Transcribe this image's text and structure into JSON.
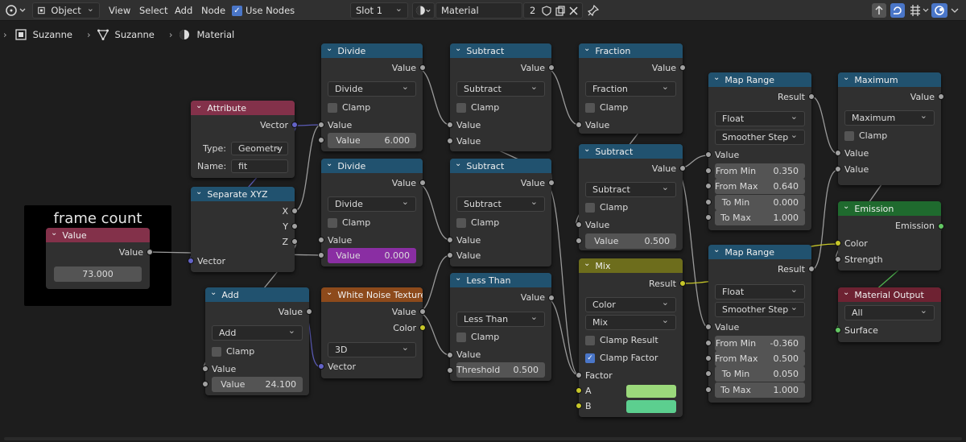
{
  "header": {
    "mode": "Object",
    "menus": [
      "View",
      "Select",
      "Add",
      "Node"
    ],
    "use_nodes": "Use Nodes",
    "slot": "Slot 1",
    "material": "Material",
    "users": "2"
  },
  "breadcrumb": [
    "Suzanne",
    "Suzanne",
    "Material"
  ],
  "frame": {
    "title": "frame count"
  },
  "nodes": {
    "value": {
      "title": "Value",
      "out": "Value",
      "value": "73.000"
    },
    "attribute": {
      "title": "Attribute",
      "out": "Vector",
      "type_label": "Type:",
      "type": "Geometry",
      "name_label": "Name:",
      "name": "fit"
    },
    "sepxyz": {
      "title": "Separate XYZ",
      "o1": "X",
      "o2": "Y",
      "o3": "Z",
      "in": "Vector"
    },
    "add": {
      "title": "Add",
      "out": "Value",
      "op": "Add",
      "clamp": "Clamp",
      "in": "Value",
      "vlabel": "Value",
      "v": "24.100"
    },
    "divide1": {
      "title": "Divide",
      "out": "Value",
      "op": "Divide",
      "clamp": "Clamp",
      "in": "Value",
      "vlabel": "Value",
      "v": "6.000"
    },
    "divide2": {
      "title": "Divide",
      "out": "Value",
      "op": "Divide",
      "clamp": "Clamp",
      "in": "Value",
      "vlabel": "Value",
      "v": "0.000"
    },
    "noise": {
      "title": "White Noise Texture",
      "o1": "Value",
      "o2": "Color",
      "dim": "3D",
      "in": "Vector"
    },
    "sub1": {
      "title": "Subtract",
      "out": "Value",
      "op": "Subtract",
      "clamp": "Clamp",
      "i1": "Value",
      "i2": "Value"
    },
    "sub2": {
      "title": "Subtract",
      "out": "Value",
      "op": "Subtract",
      "clamp": "Clamp",
      "i1": "Value",
      "i2": "Value"
    },
    "less": {
      "title": "Less Than",
      "out": "Value",
      "op": "Less Than",
      "clamp": "Clamp",
      "in": "Value",
      "tlabel": "Threshold",
      "t": "0.500"
    },
    "fraction": {
      "title": "Fraction",
      "out": "Value",
      "op": "Fraction",
      "clamp": "Clamp",
      "in": "Value"
    },
    "sub3": {
      "title": "Subtract",
      "out": "Value",
      "op": "Subtract",
      "clamp": "Clamp",
      "in": "Value",
      "vlabel": "Value",
      "v": "0.500"
    },
    "mix": {
      "title": "Mix",
      "out": "Result",
      "type": "Color",
      "blend": "Mix",
      "cr": "Clamp Result",
      "cf": "Clamp Factor",
      "fac": "Factor",
      "a": "A",
      "b": "B",
      "color_a": "#9bd97b",
      "color_b": "#5ccf8f"
    },
    "mr1": {
      "title": "Map Range",
      "out": "Result",
      "type": "Float",
      "interp": "Smoother Step",
      "in": "Value",
      "fields": [
        [
          "From Min",
          "0.350"
        ],
        [
          "From Max",
          "0.640"
        ],
        [
          "To Min",
          "0.000"
        ],
        [
          "To Max",
          "1.000"
        ]
      ]
    },
    "mr2": {
      "title": "Map Range",
      "out": "Result",
      "type": "Float",
      "interp": "Smoother Step",
      "in": "Value",
      "fields": [
        [
          "From Min",
          "-0.360"
        ],
        [
          "From Max",
          "0.500"
        ],
        [
          "To Min",
          "0.050"
        ],
        [
          "To Max",
          "1.000"
        ]
      ]
    },
    "maximum": {
      "title": "Maximum",
      "out": "Value",
      "op": "Maximum",
      "clamp": "Clamp",
      "i1": "Value",
      "i2": "Value"
    },
    "emission": {
      "title": "Emission",
      "out": "Emission",
      "i1": "Color",
      "i2": "Strength"
    },
    "matout": {
      "title": "Material Output",
      "target": "All",
      "in": "Surface"
    }
  },
  "colors": {
    "math": "#21526f",
    "input": "#83314a",
    "texture": "#8d4a1b",
    "shader": "#1f6a2e",
    "output": "#6e2232",
    "mix": "#6d6d1c",
    "grey_socket": "#a1a1a1",
    "vector_socket": "#6363c7",
    "color_socket": "#c7c729",
    "shader_socket": "#63c763"
  }
}
